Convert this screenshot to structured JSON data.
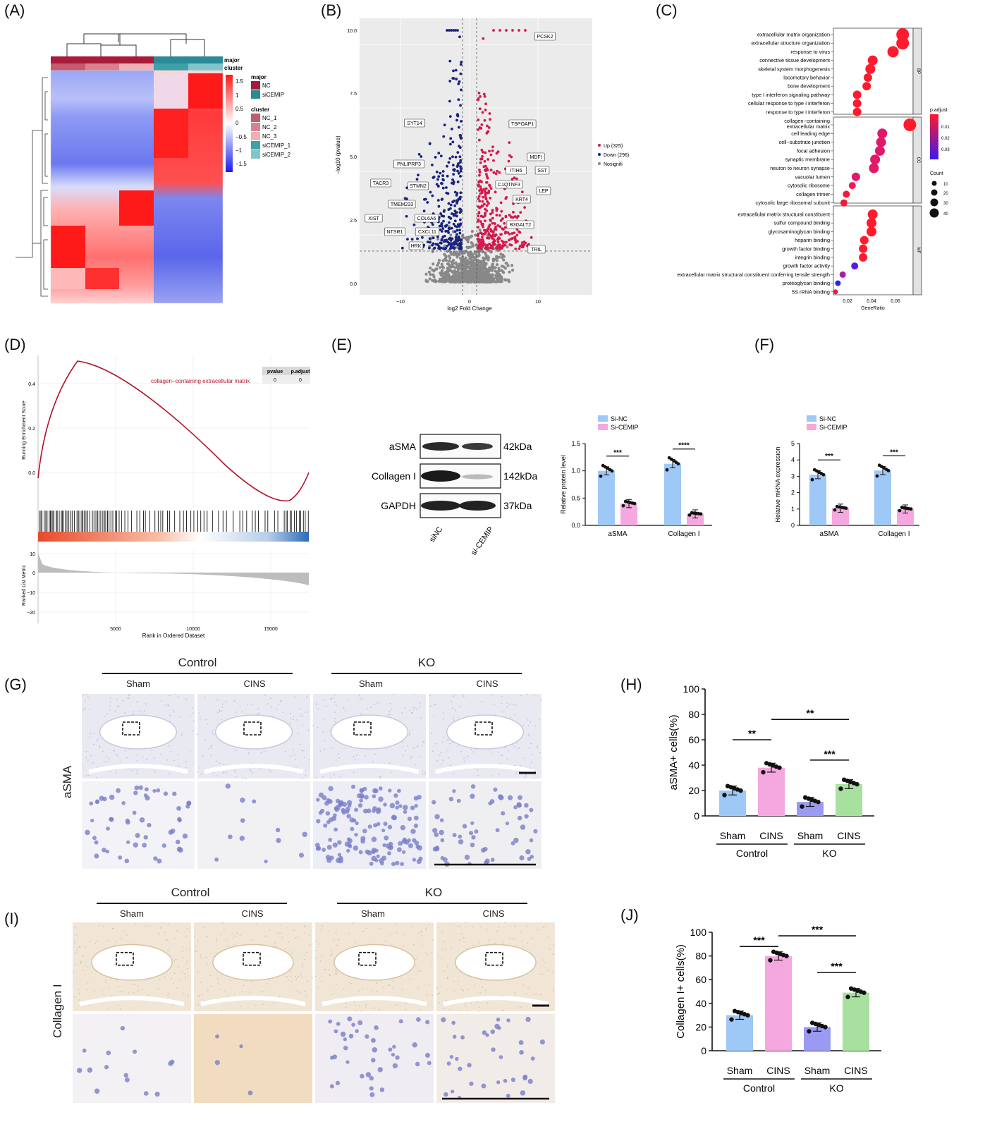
{
  "panel_labels": {
    "A": "(A)",
    "B": "(B)",
    "C": "(C)",
    "D": "(D)",
    "E": "(E)",
    "F": "(F)",
    "G": "(G)",
    "H": "(H)",
    "I": "(I)",
    "J": "(J)"
  },
  "heatmap": {
    "legend_scale_title": "",
    "scale_ticks": [
      "1.5",
      "1",
      "0.5",
      "0",
      "−0.5",
      "−1",
      "−1.5"
    ],
    "track_label_major": "major",
    "track_label_cluster": "cluster",
    "legend_major_title": "major",
    "legend_major": [
      "NC",
      "siCEMIP"
    ],
    "legend_cluster_title": "cluster",
    "legend_cluster": [
      "NC_1",
      "NC_2",
      "NC_3",
      "siCEMIP_1",
      "siCEMIP_2"
    ],
    "colors": {
      "high": "#ff1a1a",
      "mid": "#ffffff",
      "low": "#2222ee",
      "nc": "#a8193a",
      "si": "#2a8a96"
    }
  },
  "volcano": {
    "xlabel": "log2 Fold Change",
    "ylabel": "−log10 (pvalue)",
    "xticks": [
      "−10",
      "0",
      "10"
    ],
    "yticks": [
      "0.0",
      "2.5",
      "5.0",
      "7.5",
      "10.0"
    ],
    "legend": [
      "Up (325)",
      "Down (296)",
      "Nosignifi"
    ],
    "colors": {
      "up": "#d6184a",
      "down": "#1a237e",
      "ns": "#888888"
    },
    "genes": [
      "PCSK2",
      "SYT14",
      "TSPOAP1",
      "MDFI",
      "PNLIPRP3",
      "ITIH6",
      "SST",
      "TACR3",
      "STMN2",
      "C1QTNF3",
      "LEP",
      "TMEM233",
      "KRT4",
      "XIST",
      "COL6A6",
      "B3GALT2",
      "NTSR1",
      "CXCL11",
      "HRK",
      "TRIL"
    ]
  },
  "go_dot": {
    "xlabel": "GeneRatio",
    "xticks": [
      "0.02",
      "0.04",
      "0.06"
    ],
    "facets": [
      "BP",
      "CC",
      "MF"
    ],
    "legend_padj_title": "p.adjust",
    "legend_padj_ticks": [
      "0.01",
      "0.02",
      "0.03"
    ],
    "legend_count_title": "Count",
    "legend_count": [
      "10",
      "20",
      "30",
      "40"
    ],
    "bp_terms": [
      "extracellular matrix organization",
      "extracellular structure organization",
      "response to virus",
      "connective tissue development",
      "skeletal system morphogenesis",
      "locomotory behavior",
      "bone development",
      "type I interferon signaling pathway",
      "cellular response to type I interferon",
      "response to type I interferon"
    ],
    "cc_terms": [
      "collagen−containing extracellular matrix",
      "cell leading edge",
      "cell−substrate junction",
      "focal adhesion",
      "synaptic membrane",
      "neuron to neuron synapse",
      "vacuolar lumen",
      "cytosolic ribosome",
      "collagen trimer",
      "cytosolic large ribosomal subunit"
    ],
    "mf_terms": [
      "extracellular matrix structural constituent",
      "sulfur compound binding",
      "glycosaminoglycan binding",
      "heparin binding",
      "growth factor binding",
      "integrin binding",
      "growth factor activity",
      "extracellular matrix structural constituent conferring tensile strength",
      "proteoglycan binding",
      "5S rRNA binding"
    ],
    "cc_term1_lines": [
      "collagen−containing",
      "extracellular matrix"
    ]
  },
  "gsea": {
    "ylabel_top": "Running Enrichment Score",
    "ylabel_bottom": "Ranked List Metric",
    "xlabel": "Rank in Ordered Dataset",
    "top_yticks": [
      "0.4",
      "0.2",
      "0.0"
    ],
    "bottom_yticks": [
      "10",
      "0",
      "−10",
      "−20"
    ],
    "xticks": [
      "5000",
      "10000",
      "15000"
    ],
    "term": "collagen−containing extracellular matrix",
    "table_headers": [
      "pvalue",
      "p.adjust"
    ],
    "table_values": [
      "0",
      "0"
    ]
  },
  "western": {
    "rows": [
      "aSMA",
      "Collagen I",
      "GAPDH"
    ],
    "kda": [
      "42kDa",
      "142kDa",
      "37kDa"
    ],
    "lanes": [
      "siNC",
      "si-CEMIP"
    ]
  },
  "chart_data": [
    {
      "panel": "E-bar",
      "type": "bar",
      "categories": [
        "aSMA",
        "Collagen I"
      ],
      "ylabel": "Relative protein level",
      "ylim": [
        0,
        1.5
      ],
      "yticks": [
        "0.0",
        "0.5",
        "1.0",
        "1.5"
      ],
      "series": [
        {
          "name": "Si-NC",
          "values": [
            1.0,
            1.13
          ],
          "color": "#9ec8f5"
        },
        {
          "name": "Si-CEMIP",
          "values": [
            0.4,
            0.21
          ],
          "color": "#f5a8e0"
        }
      ],
      "significance": [
        "***",
        "****"
      ]
    },
    {
      "panel": "F",
      "type": "bar",
      "categories": [
        "aSMA",
        "Collagen I"
      ],
      "ylabel": "Relative mRNA expression",
      "ylim": [
        0,
        5
      ],
      "yticks": [
        "0",
        "1",
        "2",
        "3",
        "4",
        "5"
      ],
      "series": [
        {
          "name": "Si-NC",
          "values": [
            3.1,
            3.35
          ],
          "color": "#9ec8f5"
        },
        {
          "name": "Si-CEMIP",
          "values": [
            1.05,
            1.0
          ],
          "color": "#f5a8e0"
        }
      ],
      "significance": [
        "***",
        "***"
      ]
    },
    {
      "panel": "H",
      "type": "bar",
      "categories": [
        "Sham",
        "CINS",
        "Sham",
        "CINS"
      ],
      "groups": [
        "Control",
        "KO"
      ],
      "ylabel": "aSMA+ cells(%)",
      "ylim": [
        0,
        100
      ],
      "yticks": [
        "0",
        "20",
        "40",
        "60",
        "80",
        "100"
      ],
      "values": [
        20,
        38,
        11,
        25
      ],
      "colors": [
        "#9ec8f5",
        "#f5a8e0",
        "#9a9af2",
        "#a8e0a0"
      ],
      "significance": [
        "**",
        "**",
        "***"
      ]
    },
    {
      "panel": "J",
      "type": "bar",
      "categories": [
        "Sham",
        "CINS",
        "Sham",
        "CINS"
      ],
      "groups": [
        "Control",
        "KO"
      ],
      "ylabel": "Collagen I+ cells(%)",
      "ylim": [
        0,
        100
      ],
      "yticks": [
        "0",
        "20",
        "40",
        "60",
        "80",
        "100"
      ],
      "values": [
        30,
        80,
        20,
        49
      ],
      "colors": [
        "#9ec8f5",
        "#f5a8e0",
        "#9a9af2",
        "#a8e0a0"
      ],
      "significance": [
        "***",
        "***",
        "***"
      ]
    }
  ],
  "ihc_g": {
    "group_left": "Control",
    "group_right": "KO",
    "cols": [
      "Sham",
      "CINS",
      "Sham",
      "CINS"
    ],
    "row_label": "aSMA"
  },
  "ihc_i": {
    "group_left": "Control",
    "group_right": "KO",
    "cols": [
      "Sham",
      "CINS",
      "Sham",
      "CINS"
    ],
    "row_label": "Collagen I"
  }
}
